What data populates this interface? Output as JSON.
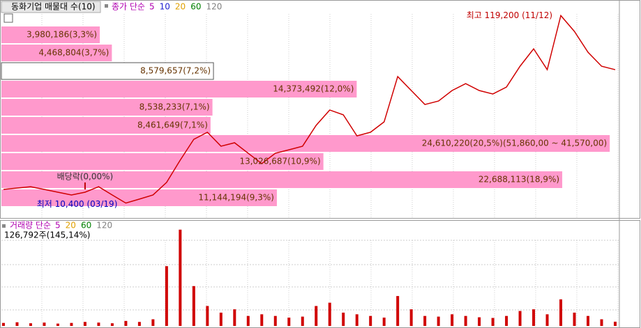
{
  "chart_data": [
    {
      "type": "line",
      "title": "동화기업 매물대 수(10)",
      "legend_title": "종가 단순",
      "moving_averages": [
        {
          "period": 5,
          "color": "#b000b0"
        },
        {
          "period": 10,
          "color": "#2020d0"
        },
        {
          "period": 20,
          "color": "#e0a000"
        },
        {
          "period": 60,
          "color": "#008000"
        },
        {
          "period": 120,
          "color": "#808080"
        }
      ],
      "series": [
        {
          "name": "종가",
          "color": "#d00000",
          "values": [
            18300,
            19100,
            19900,
            18300,
            16700,
            15100,
            16700,
            19900,
            15100,
            10400,
            12700,
            15100,
            22400,
            35300,
            47400,
            51500,
            43400,
            45400,
            39300,
            33300,
            39300,
            41300,
            43400,
            55500,
            64400,
            61600,
            49400,
            51500,
            57500,
            83800,
            75700,
            67600,
            69600,
            75700,
            79700,
            75700,
            73700,
            77700,
            89800,
            99900,
            87800,
            119200,
            110000,
            97900,
            89800,
            87800
          ]
        }
      ],
      "ylim": [
        7000,
        125000
      ],
      "volume_profile": {
        "color": "#ff99cc",
        "xlim": [
          0,
          25000000
        ],
        "highlight": 2,
        "values": [
          3980186,
          4468804,
          8579657,
          14373492,
          8538233,
          8461649,
          24610220,
          13026687,
          22688113,
          11144194
        ],
        "value_labels": [
          "3,980,186(3,3%)",
          "4,468,804(3,7%)",
          "8,579,657(7,2%)",
          "14,373,492(12,0%)",
          "8,538,233(7,1%)",
          "8,461,649(7,1%)",
          "24,610,220(20,5%)(51,860,00 ~ 41,570,00)",
          "13,026,687(10,9%)",
          "22,688,113(18,9%)",
          "11,144,194(9,3%)"
        ]
      },
      "annotations": [
        {
          "text": "최고 119,200 (11/12)",
          "index": 41,
          "color": "#c00000"
        },
        {
          "text": "최저 10,400 (03/19)",
          "index": 9,
          "color": "#0000c0"
        },
        {
          "text": "배당락(0,00%)",
          "index": 6,
          "color": "#c00000"
        }
      ]
    },
    {
      "type": "bar",
      "title": "거래량 단순",
      "moving_averages": [
        {
          "period": 5,
          "color": "#b000b0"
        },
        {
          "period": 20,
          "color": "#e0a000"
        },
        {
          "period": 60,
          "color": "#008000"
        },
        {
          "period": 120,
          "color": "#808080"
        }
      ],
      "last_label": "126,792주(145,14%)",
      "color": "#d00000",
      "values": [
        90000,
        110000,
        80000,
        100000,
        70000,
        90000,
        120000,
        100000,
        80000,
        150000,
        120000,
        200000,
        1800000,
        2900000,
        1200000,
        600000,
        400000,
        500000,
        300000,
        350000,
        300000,
        250000,
        280000,
        600000,
        700000,
        400000,
        350000,
        300000,
        250000,
        900000,
        500000,
        300000,
        280000,
        350000,
        300000,
        260000,
        240000,
        300000,
        450000,
        500000,
        350000,
        800000,
        400000,
        300000,
        200000,
        126792
      ],
      "ylim": [
        0,
        3000000
      ]
    }
  ]
}
